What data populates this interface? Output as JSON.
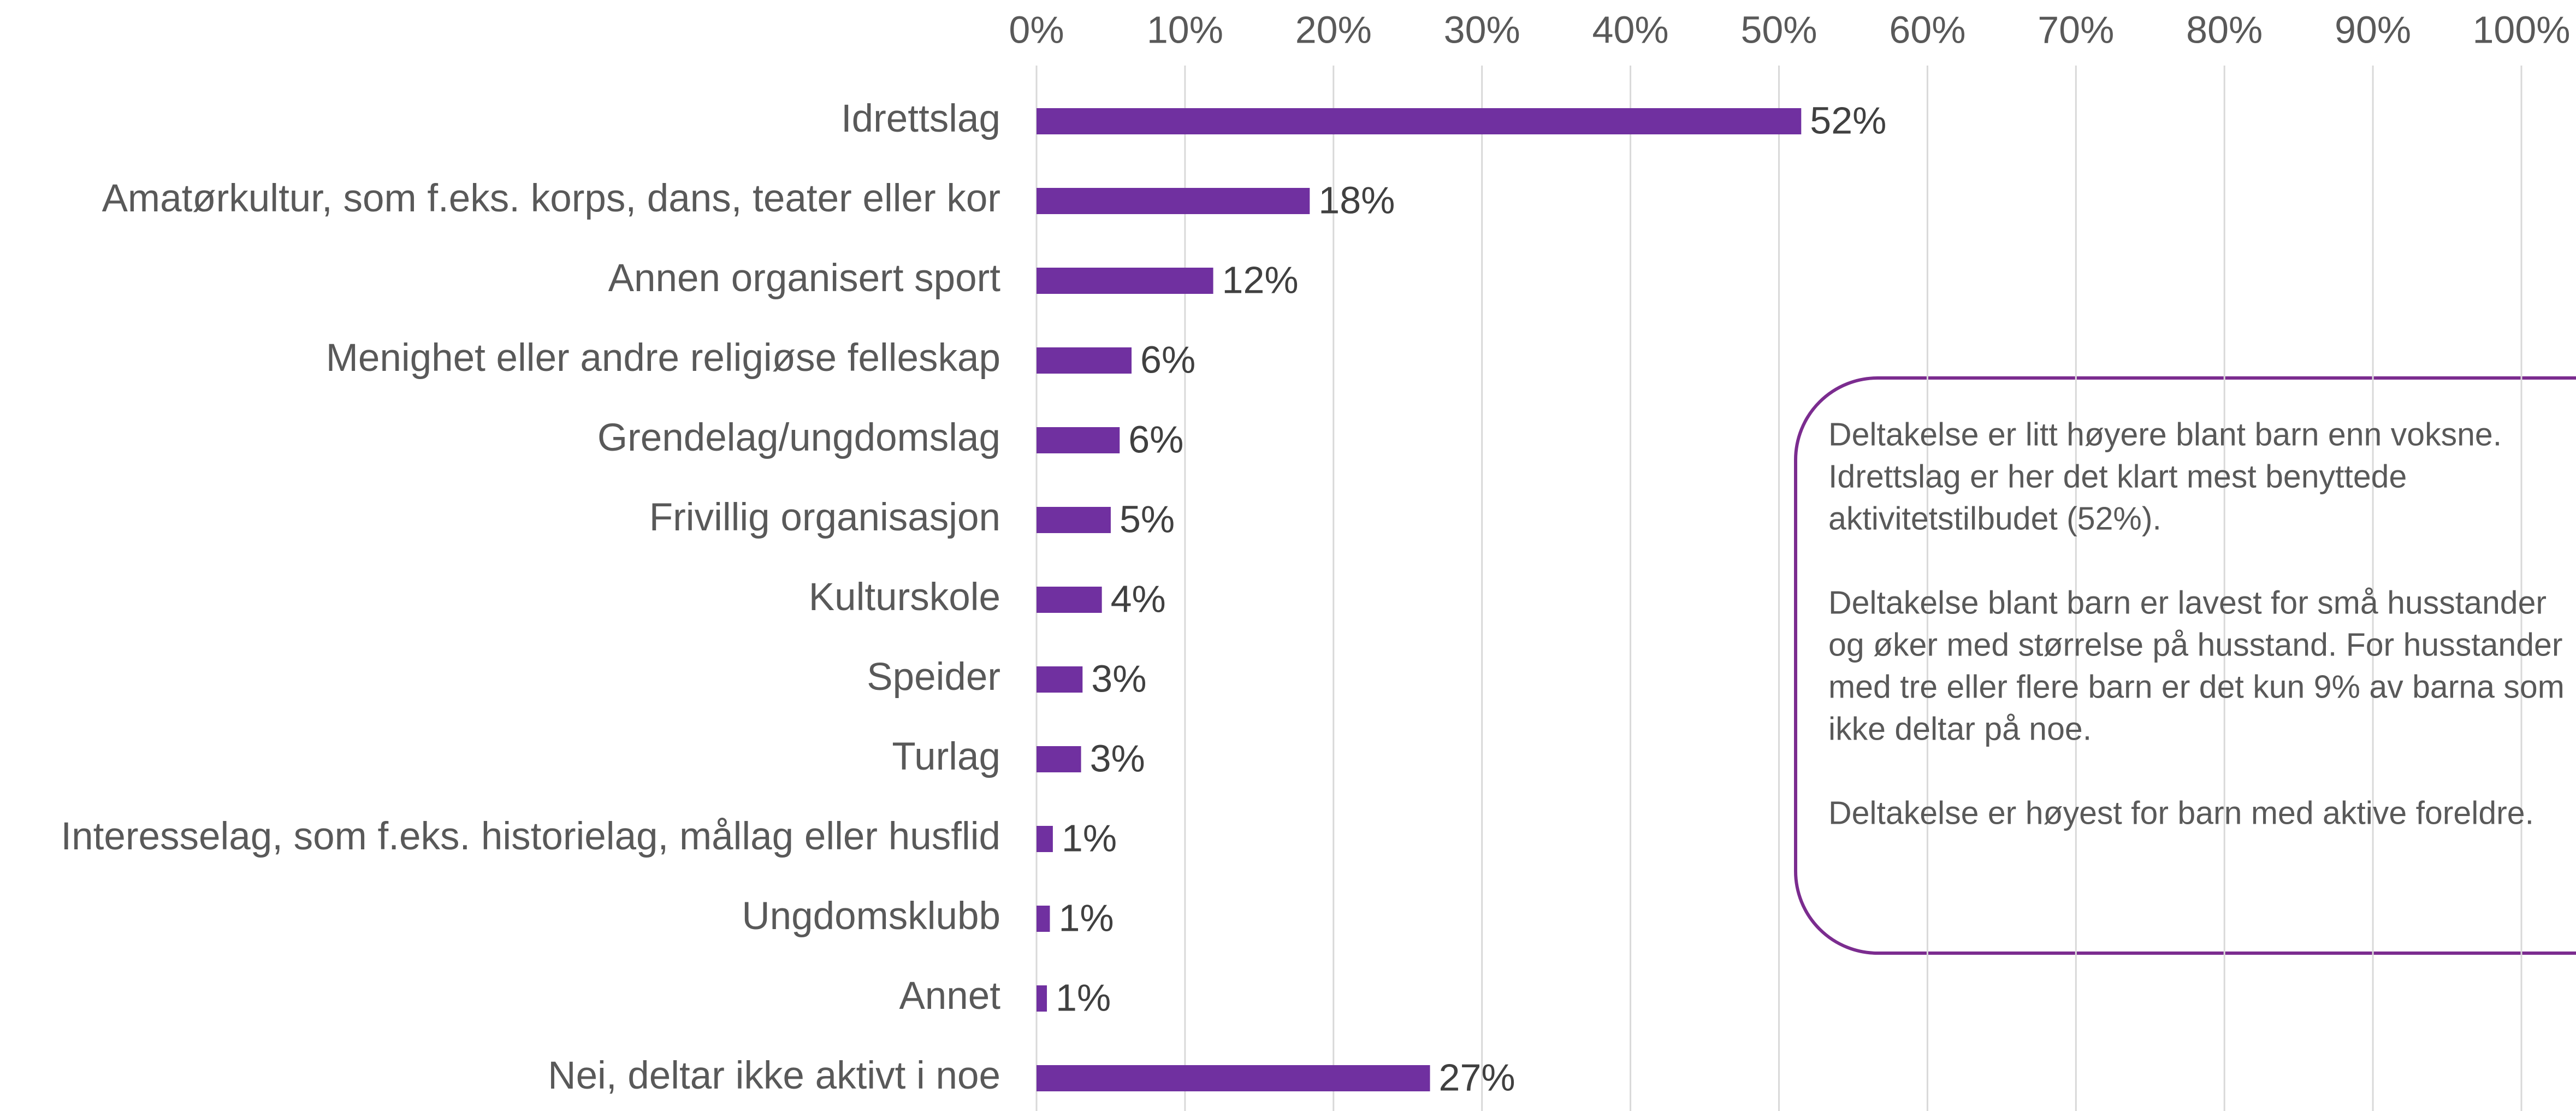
{
  "chart_data": {
    "type": "barh",
    "categories": [
      "Idrettslag",
      "Amatørkultur, som f.eks. korps, dans, teater eller kor",
      "Annen organisert sport",
      "Menighet eller andre religiøse felleskap",
      "Grendelag/ungdomslag",
      "Frivillig organisasjon",
      "Kulturskole",
      "Speider",
      "Turlag",
      "Interesselag, som f.eks. historielag, mållag eller husflid",
      "Ungdomsklubb",
      "Annet",
      "Nei, deltar ikke aktivt i noe"
    ],
    "values": [
      51.5,
      18.4,
      11.9,
      6.4,
      5.6,
      5.0,
      4.4,
      3.1,
      3.0,
      1.1,
      0.9,
      0.7,
      26.5
    ],
    "value_labels": [
      "52%",
      "18%",
      "12%",
      "6%",
      "6%",
      "5%",
      "4%",
      "3%",
      "3%",
      "1%",
      "1%",
      "1%",
      "27%"
    ],
    "color": "#7030a0",
    "xlim": [
      0,
      100
    ],
    "xticks": [
      {
        "value": 0,
        "label": "0%"
      },
      {
        "value": 10,
        "label": "10%"
      },
      {
        "value": 20,
        "label": "20%"
      },
      {
        "value": 30,
        "label": "30%"
      },
      {
        "value": 40,
        "label": "40%"
      },
      {
        "value": 50,
        "label": "50%"
      },
      {
        "value": 60,
        "label": "60%"
      },
      {
        "value": 70,
        "label": "70%"
      },
      {
        "value": 80,
        "label": "80%"
      },
      {
        "value": 90,
        "label": "90%"
      },
      {
        "value": 100,
        "label": "100%"
      }
    ],
    "grid": true,
    "annotation": [
      [
        "Deltakelse er litt høyere blant barn enn voksne.",
        "Idrettslag er her det klart mest benyttede",
        "aktivitetstilbudet (52%)."
      ],
      [
        "Deltakelse blant barn er lavest for små husstander",
        "og øker med størrelse på husstand. For husstander",
        "med tre eller flere barn er det kun 9% av barna som",
        "ikke deltar på noe."
      ],
      [
        "Deltakelse er høyest for barn med aktive foreldre."
      ]
    ]
  }
}
